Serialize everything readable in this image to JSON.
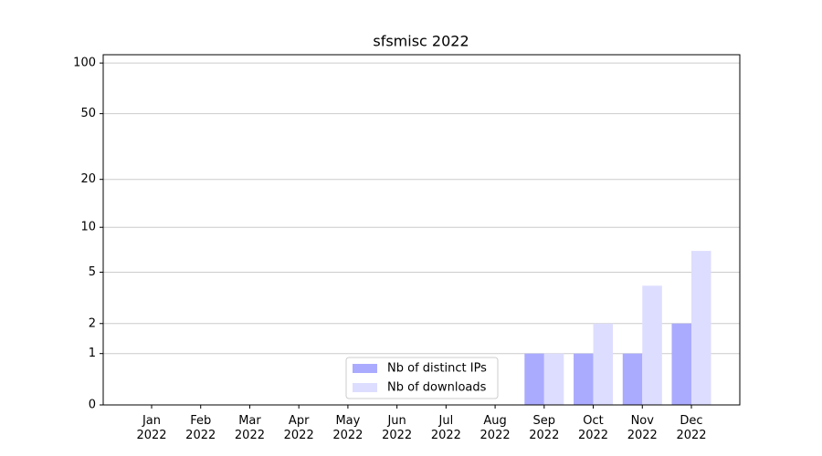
{
  "chart_data": {
    "type": "bar",
    "title": "sfsmisc 2022",
    "categories": [
      "Jan 2022",
      "Feb 2022",
      "Mar 2022",
      "Apr 2022",
      "May 2022",
      "Jun 2022",
      "Jul 2022",
      "Aug 2022",
      "Sep 2022",
      "Oct 2022",
      "Nov 2022",
      "Dec 2022"
    ],
    "series": [
      {
        "name": "Nb of distinct IPs",
        "color": "#aaaaff",
        "values": [
          0,
          0,
          0,
          0,
          0,
          0,
          0,
          0,
          1,
          1,
          1,
          2
        ]
      },
      {
        "name": "Nb of downloads",
        "color": "#ddddff",
        "values": [
          0,
          0,
          0,
          0,
          0,
          0,
          0,
          0,
          1,
          2,
          4,
          7
        ]
      }
    ],
    "yscale": "log1p",
    "ylim": [
      0,
      112
    ],
    "yticks": [
      0,
      1,
      2,
      5,
      10,
      20,
      50,
      100
    ],
    "grid": true,
    "legend": "lower center"
  }
}
